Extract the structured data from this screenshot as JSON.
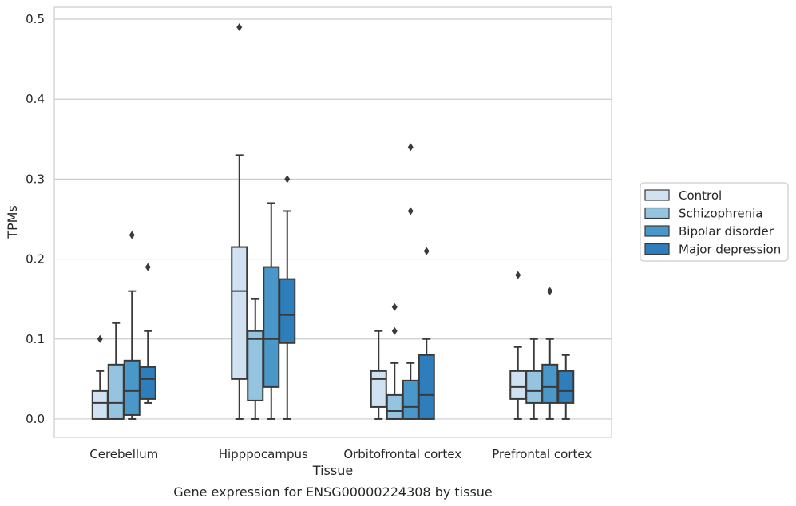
{
  "chart_data": {
    "type": "box",
    "title": "",
    "caption": "Gene expression for ENSG00000224308 by tissue",
    "xlabel": "Tissue",
    "ylabel": "TPMs",
    "ylim": [
      -0.023,
      0.515
    ],
    "yticks": [
      0.0,
      0.1,
      0.2,
      0.3,
      0.4,
      0.5
    ],
    "ytick_labels": [
      "0.0",
      "0.1",
      "0.2",
      "0.3",
      "0.4",
      "0.5"
    ],
    "grid": "horizontal",
    "legend_position": "right",
    "categories": [
      "Cerebellum",
      "Hipppocampus",
      "Orbitofrontal cortex",
      "Prefrontal cortex"
    ],
    "series": [
      {
        "name": "Control",
        "color": "#d0e1f2",
        "boxes": [
          {
            "whislo": 0.0,
            "q1": 0.0,
            "med": 0.02,
            "q3": 0.035,
            "whishi": 0.06,
            "fliers": [
              0.1
            ]
          },
          {
            "whislo": 0.0,
            "q1": 0.05,
            "med": 0.16,
            "q3": 0.215,
            "whishi": 0.33,
            "fliers": [
              0.49
            ]
          },
          {
            "whislo": 0.0,
            "q1": 0.015,
            "med": 0.05,
            "q3": 0.06,
            "whishi": 0.11,
            "fliers": []
          },
          {
            "whislo": 0.0,
            "q1": 0.025,
            "med": 0.04,
            "q3": 0.06,
            "whishi": 0.09,
            "fliers": [
              0.18
            ]
          }
        ]
      },
      {
        "name": "Schizophrenia",
        "color": "#94c4df",
        "boxes": [
          {
            "whislo": 0.0,
            "q1": 0.0,
            "med": 0.02,
            "q3": 0.068,
            "whishi": 0.12,
            "fliers": []
          },
          {
            "whislo": 0.0,
            "q1": 0.023,
            "med": 0.1,
            "q3": 0.11,
            "whishi": 0.15,
            "fliers": []
          },
          {
            "whislo": 0.0,
            "q1": 0.0,
            "med": 0.01,
            "q3": 0.03,
            "whishi": 0.07,
            "fliers": [
              0.14,
              0.11
            ]
          },
          {
            "whislo": 0.0,
            "q1": 0.02,
            "med": 0.035,
            "q3": 0.06,
            "whishi": 0.1,
            "fliers": []
          }
        ]
      },
      {
        "name": "Bipolar disorder",
        "color": "#4a98c9",
        "boxes": [
          {
            "whislo": 0.0,
            "q1": 0.005,
            "med": 0.035,
            "q3": 0.073,
            "whishi": 0.16,
            "fliers": [
              0.23
            ]
          },
          {
            "whislo": 0.0,
            "q1": 0.04,
            "med": 0.1,
            "q3": 0.19,
            "whishi": 0.27,
            "fliers": []
          },
          {
            "whislo": 0.0,
            "q1": 0.0,
            "med": 0.015,
            "q3": 0.048,
            "whishi": 0.07,
            "fliers": [
              0.34,
              0.26
            ]
          },
          {
            "whislo": 0.0,
            "q1": 0.02,
            "med": 0.04,
            "q3": 0.068,
            "whishi": 0.1,
            "fliers": [
              0.16
            ]
          }
        ]
      },
      {
        "name": "Major depression",
        "color": "#2e7ebc",
        "boxes": [
          {
            "whislo": 0.02,
            "q1": 0.025,
            "med": 0.05,
            "q3": 0.065,
            "whishi": 0.11,
            "fliers": [
              0.19
            ]
          },
          {
            "whislo": 0.0,
            "q1": 0.095,
            "med": 0.13,
            "q3": 0.175,
            "whishi": 0.26,
            "fliers": [
              0.3
            ]
          },
          {
            "whislo": 0.0,
            "q1": 0.0,
            "med": 0.03,
            "q3": 0.08,
            "whishi": 0.1,
            "fliers": [
              0.21
            ]
          },
          {
            "whislo": 0.0,
            "q1": 0.02,
            "med": 0.035,
            "q3": 0.06,
            "whishi": 0.08,
            "fliers": []
          }
        ]
      }
    ]
  }
}
